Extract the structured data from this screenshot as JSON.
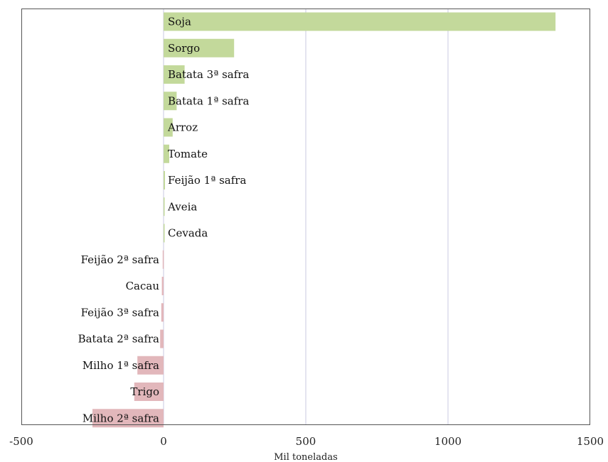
{
  "chart_data": {
    "type": "bar",
    "orientation": "horizontal",
    "categories": [
      "Soja",
      "Sorgo",
      "Batata 3ª safra",
      "Batata 1ª safra",
      "Arroz",
      "Tomate",
      "Feijão 1ª safra",
      "Aveia",
      "Cevada",
      "Feijão 2ª safra",
      "Cacau",
      "Feijão 3ª safra",
      "Batata 2ª safra",
      "Milho 1ª safra",
      "Trigo",
      "Milho 2ª safra"
    ],
    "values": [
      1378,
      248,
      74,
      46,
      32,
      20,
      5,
      3,
      2,
      -3,
      -6,
      -8,
      -12,
      -92,
      -103,
      -250
    ],
    "xlabel": "Mil toneladas",
    "ylabel": "",
    "xlim": [
      -500,
      1500
    ],
    "xticks": [
      "-500",
      "0",
      "500",
      "1000",
      "1500"
    ],
    "grid": "vertical",
    "legend": "none",
    "colors": {
      "positive": "#c3d99b",
      "negative": "#e2b7bb",
      "gridline": "#c8c8e0",
      "frame": "#555555"
    }
  }
}
